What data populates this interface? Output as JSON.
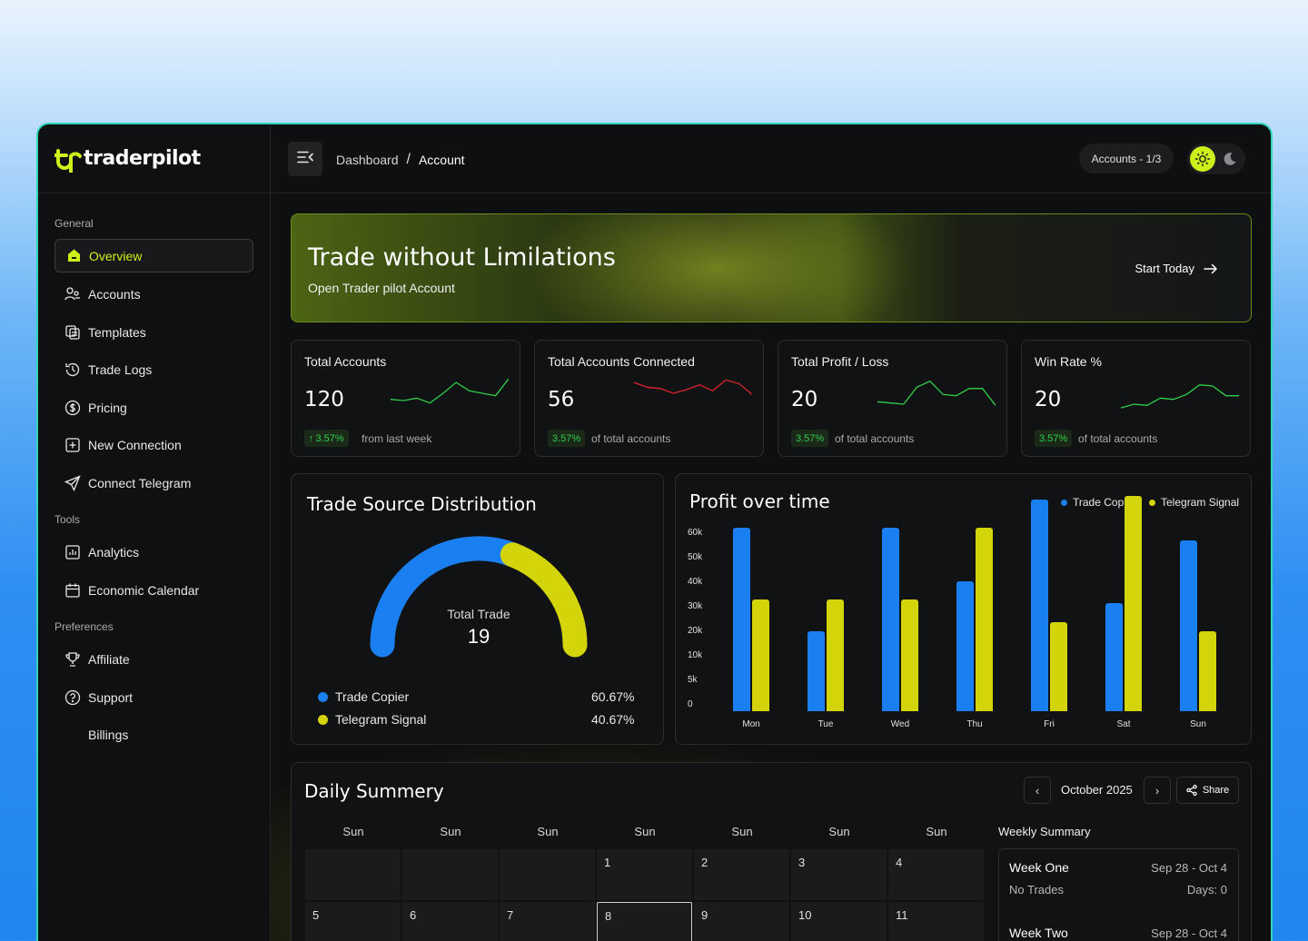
{
  "brand": {
    "name": "traderpilot",
    "accent": "#ccf019"
  },
  "sidebar": {
    "sections": [
      "General",
      "Tools",
      "Preferences"
    ],
    "items": [
      {
        "label": "Overview",
        "icon": "home-icon"
      },
      {
        "label": "Accounts",
        "icon": "users-icon"
      },
      {
        "label": "Templates",
        "icon": "copy-icon"
      },
      {
        "label": "Trade Logs",
        "icon": "history-icon"
      },
      {
        "label": "Pricing",
        "icon": "dollar-icon"
      },
      {
        "label": "New Connection",
        "icon": "plus-square-icon"
      },
      {
        "label": "Connect Telegram",
        "icon": "send-icon"
      },
      {
        "label": "Analytics",
        "icon": "chart-icon"
      },
      {
        "label": "Economic Calendar",
        "icon": "calendar-icon"
      },
      {
        "label": "Affiliate",
        "icon": "trophy-icon"
      },
      {
        "label": "Support",
        "icon": "help-icon"
      },
      {
        "label": "Billings",
        "icon": ""
      }
    ]
  },
  "header": {
    "breadcrumb": [
      "Dashboard",
      "Account"
    ],
    "accounts_pill": "Accounts - 1/3"
  },
  "banner": {
    "title": "Trade without Limilations",
    "subtitle": "Open Trader pilot Account",
    "cta": "Start Today"
  },
  "stats": [
    {
      "label": "Total Accounts",
      "value": "120",
      "badge": "3.57%",
      "note": "from last week",
      "trend_color": "#2fcf4a",
      "spark": [
        20,
        21,
        19,
        23,
        15,
        6,
        13,
        15,
        17,
        3
      ]
    },
    {
      "label": "Total Accounts Connected",
      "value": "56",
      "badge": "3.57%",
      "note": "of total accounts",
      "trend_color": "#e0242f",
      "spark": [
        6,
        10,
        11,
        15,
        12,
        8,
        13,
        4,
        7,
        16
      ]
    },
    {
      "label": "Total Profit / Loss",
      "value": "20",
      "badge": "3.57%",
      "note": "of total accounts",
      "trend_color": "#2fcf4a",
      "spark": [
        22,
        23,
        24,
        10,
        5,
        16,
        17,
        11,
        11,
        25
      ]
    },
    {
      "label": "Win Rate %",
      "value": "20",
      "badge": "3.57%",
      "note": "of total accounts",
      "trend_color": "#2fcf4a",
      "spark": [
        27,
        24,
        25,
        19,
        20,
        16,
        8,
        9,
        17,
        17
      ]
    }
  ],
  "distribution": {
    "title": "Trade Source Distribution",
    "center_label": "Total Trade",
    "center_value": "19",
    "items": [
      {
        "name": "Trade Copier",
        "pct": "60.67%",
        "color": "#1a7ff0"
      },
      {
        "name": "Telegram Signal",
        "pct": "40.67%",
        "color": "#d4d40b"
      }
    ]
  },
  "profit": {
    "title": "Profit over time",
    "legend": [
      "Trade Copier",
      "Telegram Signal"
    ],
    "yticks": [
      "60k",
      "50k",
      "40k",
      "30k",
      "20k",
      "10k",
      "5k",
      "0"
    ]
  },
  "chart_data": {
    "type": "bar",
    "categories": [
      "Mon",
      "Tue",
      "Wed",
      "Thu",
      "Fri",
      "Sat",
      "Sun"
    ],
    "series": [
      {
        "name": "Trade Copier",
        "color": "#1a7ff0",
        "values": [
          51500,
          22500,
          51500,
          36500,
          59500,
          30500,
          48000
        ]
      },
      {
        "name": "Telegram Signal",
        "color": "#d4d40b",
        "values": [
          31500,
          31500,
          31500,
          51500,
          25000,
          60500,
          22500
        ]
      }
    ],
    "yticks": [
      "60k",
      "50k",
      "40k",
      "30k",
      "20k",
      "10k",
      "5k",
      "0"
    ]
  },
  "daily": {
    "title": "Daily Summery",
    "month": "October 2025",
    "share": "Share",
    "weekdays": [
      "Sun",
      "Sun",
      "Sun",
      "Sun",
      "Sun",
      "Sun",
      "Sun"
    ],
    "row1": [
      "",
      "",
      "",
      "1",
      "2",
      "3",
      "4"
    ],
    "row2": [
      "5",
      "6",
      "7",
      "8",
      "9",
      "10",
      "11"
    ],
    "weekly_title": "Weekly Summary",
    "weeks": [
      {
        "name": "Week One",
        "range": "Sep 28 - Oct 4",
        "trades": "No Trades",
        "days": "Days: 0"
      },
      {
        "name": "Week Two",
        "range": "Sep 28 - Oct 4"
      }
    ]
  }
}
